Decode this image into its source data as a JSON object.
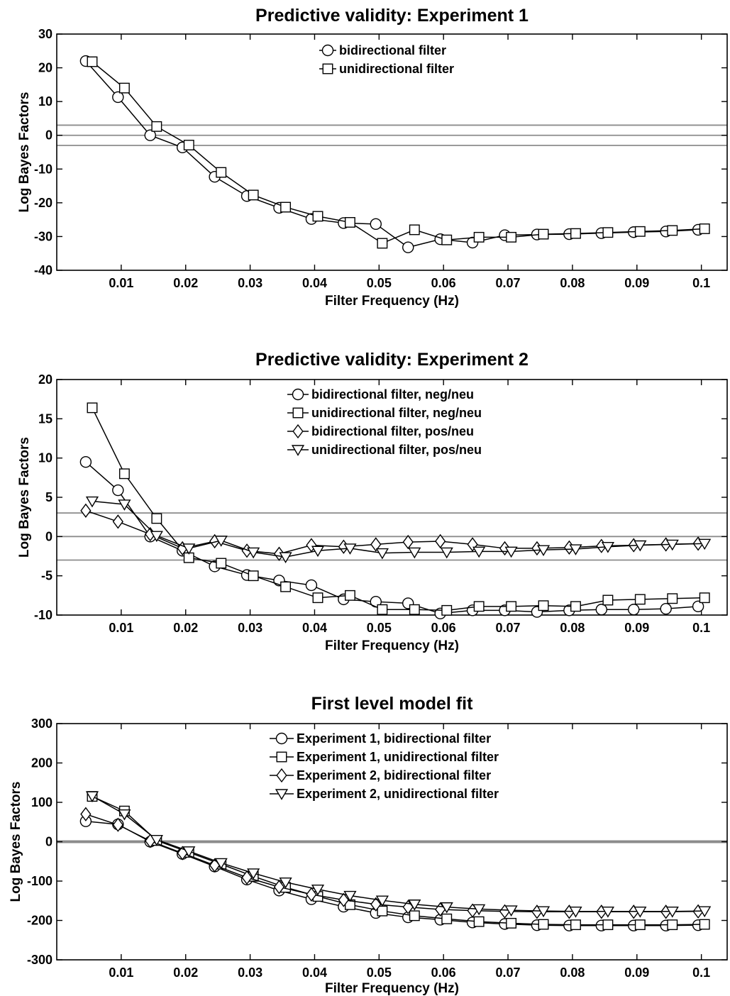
{
  "chart_data": [
    {
      "type": "line",
      "title": "Predictive validity: Experiment 1",
      "xlabel": "Filter Frequency (Hz)",
      "ylabel": "Log Bayes Factors",
      "xlim": [
        0,
        0.104
      ],
      "ylim": [
        -40,
        30
      ],
      "xticks": [
        0.01,
        0.02,
        0.03,
        0.04,
        0.05,
        0.06,
        0.07,
        0.08,
        0.09,
        0.1
      ],
      "xtick_labels": [
        "0.01",
        "0.02",
        "0.03",
        "0.04",
        "0.05",
        "0.06",
        "0.07",
        "0.08",
        "0.09",
        "0.1"
      ],
      "yticks": [
        30,
        20,
        10,
        0,
        -10,
        -20,
        -30,
        -40
      ],
      "ytick_labels": [
        "30",
        "20",
        "10",
        "0",
        "-10",
        "-20",
        "-30",
        "-40"
      ],
      "reference_lines": [
        3,
        0,
        -3
      ],
      "legend_position": "top-center",
      "series": [
        {
          "name": "bidirectional filter",
          "marker": "circle",
          "x": [
            0.0045,
            0.0095,
            0.0145,
            0.0195,
            0.0245,
            0.0295,
            0.0345,
            0.0395,
            0.0445,
            0.0495,
            0.0545,
            0.0595,
            0.0645,
            0.0695,
            0.0745,
            0.0795,
            0.0845,
            0.0895,
            0.0945,
            0.0995
          ],
          "y": [
            22,
            11.3,
            0,
            -3.6,
            -12.3,
            -18,
            -21.5,
            -24.8,
            -26,
            -26.3,
            -33.2,
            -30.8,
            -31.8,
            -29.6,
            -29.4,
            -29.3,
            -29,
            -28.7,
            -28.5,
            -28
          ]
        },
        {
          "name": "unidirectional filter",
          "marker": "square",
          "x": [
            0.0055,
            0.0105,
            0.0155,
            0.0205,
            0.0255,
            0.0305,
            0.0355,
            0.0405,
            0.0455,
            0.0505,
            0.0555,
            0.0605,
            0.0655,
            0.0705,
            0.0755,
            0.0805,
            0.0855,
            0.0905,
            0.0955,
            0.1005
          ],
          "y": [
            21.8,
            14,
            2.6,
            -2.9,
            -11,
            -17.7,
            -21.3,
            -24,
            -25.8,
            -32,
            -28,
            -31,
            -30.2,
            -30.2,
            -29.3,
            -29.1,
            -28.8,
            -28.5,
            -28.2,
            -27.7
          ]
        }
      ]
    },
    {
      "type": "line",
      "title": "Predictive validity: Experiment 2",
      "xlabel": "Filter Frequency (Hz)",
      "ylabel": "Log Bayes Factors",
      "xlim": [
        0,
        0.104
      ],
      "ylim": [
        -10,
        20
      ],
      "xticks": [
        0.01,
        0.02,
        0.03,
        0.04,
        0.05,
        0.06,
        0.07,
        0.08,
        0.09,
        0.1
      ],
      "xtick_labels": [
        "0.01",
        "0.02",
        "0.03",
        "0.04",
        "0.05",
        "0.06",
        "0.07",
        "0.08",
        "0.09",
        "0.1"
      ],
      "yticks": [
        20,
        15,
        10,
        5,
        0,
        -5,
        -10
      ],
      "ytick_labels": [
        "20",
        "15",
        "10",
        "5",
        "0",
        "-5",
        "-10"
      ],
      "reference_lines": [
        3,
        0,
        -3
      ],
      "legend_position": "top-center",
      "series": [
        {
          "name": "bidirectional filter, neg/neu",
          "marker": "circle",
          "x": [
            0.0045,
            0.0095,
            0.0145,
            0.0195,
            0.0245,
            0.0295,
            0.0345,
            0.0395,
            0.0445,
            0.0495,
            0.0545,
            0.0595,
            0.0645,
            0.0695,
            0.0745,
            0.0795,
            0.0845,
            0.0895,
            0.0945,
            0.0995
          ],
          "y": [
            9.5,
            5.9,
            0,
            -1.8,
            -3.8,
            -4.9,
            -5.6,
            -6.2,
            -8,
            -8.3,
            -8.5,
            -9.8,
            -9.4,
            -9.4,
            -9.6,
            -9.4,
            -9.3,
            -9.3,
            -9.2,
            -8.9
          ]
        },
        {
          "name": "unidirectional filter, neg/neu",
          "marker": "square",
          "x": [
            0.0055,
            0.0105,
            0.0155,
            0.0205,
            0.0255,
            0.0305,
            0.0355,
            0.0405,
            0.0455,
            0.0505,
            0.0555,
            0.0605,
            0.0655,
            0.0705,
            0.0755,
            0.0805,
            0.0855,
            0.0905,
            0.0955,
            0.1005
          ],
          "y": [
            16.4,
            8,
            2.3,
            -2.7,
            -3.4,
            -5,
            -6.4,
            -7.8,
            -7.5,
            -9.3,
            -9.3,
            -9.4,
            -8.9,
            -8.9,
            -8.8,
            -8.9,
            -8.1,
            -8,
            -7.9,
            -7.8
          ]
        },
        {
          "name": "bidirectional filter, pos/neu",
          "marker": "diamond",
          "x": [
            0.0045,
            0.0095,
            0.0145,
            0.0195,
            0.0245,
            0.0295,
            0.0345,
            0.0395,
            0.0445,
            0.0495,
            0.0545,
            0.0595,
            0.0645,
            0.0695,
            0.0745,
            0.0795,
            0.0845,
            0.0895,
            0.0945,
            0.0995
          ],
          "y": [
            3.3,
            1.9,
            0.3,
            -1.5,
            -0.6,
            -1.8,
            -2.2,
            -1.1,
            -1.3,
            -1,
            -0.7,
            -0.6,
            -1,
            -1.5,
            -1.5,
            -1.4,
            -1.2,
            -1.1,
            -1,
            -0.9
          ]
        },
        {
          "name": "unidirectional filter, pos/neu",
          "marker": "triangle-down",
          "x": [
            0.0055,
            0.0105,
            0.0155,
            0.0205,
            0.0255,
            0.0305,
            0.0355,
            0.0405,
            0.0455,
            0.0505,
            0.0555,
            0.0605,
            0.0655,
            0.0705,
            0.0755,
            0.0805,
            0.0855,
            0.0905,
            0.0955,
            0.1005
          ],
          "y": [
            4.5,
            4.1,
            0.1,
            -1.5,
            -0.5,
            -2,
            -2.6,
            -1.8,
            -1.5,
            -2.1,
            -2,
            -2,
            -1.9,
            -1.9,
            -1.7,
            -1.6,
            -1.3,
            -1.1,
            -1,
            -0.9
          ]
        }
      ]
    },
    {
      "type": "line",
      "title": "First level model fit",
      "xlabel": "Filter Frequency (Hz)",
      "ylabel": "Log Bayes Factors",
      "xlim": [
        0,
        0.104
      ],
      "ylim": [
        -300,
        300
      ],
      "xticks": [
        0.01,
        0.02,
        0.03,
        0.04,
        0.05,
        0.06,
        0.07,
        0.08,
        0.09,
        0.1
      ],
      "xtick_labels": [
        "0.01",
        "0.02",
        "0.03",
        "0.04",
        "0.05",
        "0.06",
        "0.07",
        "0.08",
        "0.09",
        "0.1"
      ],
      "yticks": [
        300,
        200,
        100,
        0,
        -100,
        -200,
        -300
      ],
      "ytick_labels": [
        "300",
        "200",
        "100",
        "0",
        "-100",
        "-200",
        "-300"
      ],
      "reference_lines": [
        0
      ],
      "legend_position": "top-center",
      "series": [
        {
          "name": "Experiment 1, bidirectional filter",
          "marker": "circle",
          "x": [
            0.0045,
            0.0095,
            0.0145,
            0.0195,
            0.0245,
            0.0295,
            0.0345,
            0.0395,
            0.0445,
            0.0495,
            0.0545,
            0.0595,
            0.0645,
            0.0695,
            0.0745,
            0.0795,
            0.0845,
            0.0895,
            0.0945,
            0.0995
          ],
          "y": [
            52,
            44,
            0,
            -31,
            -63,
            -96,
            -124,
            -146,
            -165,
            -181,
            -192,
            -198,
            -205,
            -209,
            -212,
            -213,
            -213,
            -213,
            -213,
            -212
          ]
        },
        {
          "name": "Experiment 1, unidirectional filter",
          "marker": "square",
          "x": [
            0.0055,
            0.0105,
            0.0155,
            0.0205,
            0.0255,
            0.0305,
            0.0355,
            0.0405,
            0.0455,
            0.0505,
            0.0555,
            0.0605,
            0.0655,
            0.0705,
            0.0755,
            0.0805,
            0.0855,
            0.0905,
            0.0955,
            0.1005
          ],
          "y": [
            115,
            78,
            3,
            -27,
            -57,
            -88,
            -116,
            -139,
            -160,
            -176,
            -188,
            -196,
            -203,
            -207,
            -210,
            -211,
            -211,
            -211,
            -211,
            -210
          ]
        },
        {
          "name": "Experiment 2, bidirectional filter",
          "marker": "diamond",
          "x": [
            0.0045,
            0.0095,
            0.0145,
            0.0195,
            0.0245,
            0.0295,
            0.0345,
            0.0395,
            0.0445,
            0.0495,
            0.0545,
            0.0595,
            0.0645,
            0.0695,
            0.0745,
            0.0795,
            0.0845,
            0.0895,
            0.0945,
            0.0995
          ],
          "y": [
            70,
            43,
            2,
            -29,
            -60,
            -91,
            -115,
            -134,
            -148,
            -159,
            -166,
            -172,
            -175,
            -177,
            -178,
            -178,
            -178,
            -178,
            -178,
            -177
          ]
        },
        {
          "name": "Experiment 2, unidirectional filter",
          "marker": "triangle-down",
          "x": [
            0.0055,
            0.0105,
            0.0155,
            0.0205,
            0.0255,
            0.0305,
            0.0355,
            0.0405,
            0.0455,
            0.0505,
            0.0555,
            0.0605,
            0.0655,
            0.0705,
            0.0755,
            0.0805,
            0.0855,
            0.0905,
            0.0955,
            0.1005
          ],
          "y": [
            116,
            70,
            5,
            -24,
            -54,
            -80,
            -103,
            -121,
            -137,
            -149,
            -159,
            -166,
            -171,
            -174,
            -176,
            -177,
            -177,
            -177,
            -177,
            -176
          ]
        }
      ]
    }
  ]
}
